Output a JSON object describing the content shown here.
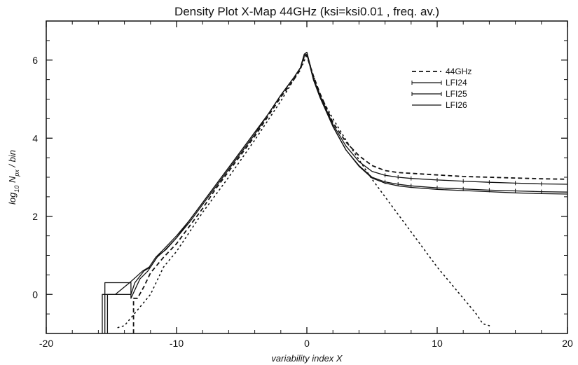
{
  "chart_data": {
    "type": "line",
    "title": "Density Plot X-Map 44GHz (ksi=ksi0.01 , freq. av.)",
    "xlabel": "variability index X",
    "ylabel_main": "log",
    "ylabel_sub": "10",
    "ylabel_mid": " N",
    "ylabel_sub2": "px",
    "ylabel_end": " / bin",
    "xlim": [
      -20,
      20
    ],
    "ylim": [
      -1,
      7
    ],
    "xticks": [
      -20,
      -10,
      0,
      10,
      20
    ],
    "xtick_labels": [
      "-20",
      "-10",
      "0",
      "10",
      "20"
    ],
    "yticks": [
      0,
      2,
      4,
      6
    ],
    "ytick_labels": [
      "0",
      "2",
      "4",
      "6"
    ],
    "grid": false,
    "legend_position": "top-right",
    "series": [
      {
        "name": "44GHz",
        "style": "dashed",
        "color": "#111111",
        "x": [
          -13.3,
          -13.3,
          -13.0,
          -12.5,
          -12.0,
          -11.5,
          -11.0,
          -10.0,
          -9.0,
          -8.0,
          -7.0,
          -6.0,
          -5.0,
          -4.0,
          -3.0,
          -2.0,
          -1.0,
          -0.5,
          -0.15,
          0.0,
          0.5,
          1.0,
          2.0,
          3.0,
          4.0,
          5.0,
          6.0,
          7.0,
          8.0,
          10.0,
          12.0,
          14.0,
          16.0,
          18.0,
          20.0
        ],
        "y": [
          -1.0,
          -0.1,
          -0.1,
          0.2,
          0.55,
          0.75,
          0.95,
          1.3,
          1.75,
          2.2,
          2.7,
          3.15,
          3.6,
          4.05,
          4.55,
          5.05,
          5.5,
          5.75,
          6.15,
          6.1,
          5.6,
          5.15,
          4.4,
          3.9,
          3.55,
          3.3,
          3.17,
          3.12,
          3.1,
          3.06,
          3.02,
          3.0,
          2.98,
          2.96,
          2.95
        ]
      },
      {
        "name": "LFI24",
        "style": "solid-ticked",
        "color": "#111111",
        "x": [
          -15.5,
          -15.5,
          -14.5,
          -13.5,
          -13.5,
          -12.8,
          -12.2,
          -11.5,
          -11.0,
          -10.0,
          -9.0,
          -8.0,
          -7.0,
          -6.0,
          -5.0,
          -4.0,
          -3.0,
          -2.0,
          -1.0,
          -0.5,
          -0.2,
          0.0,
          0.5,
          1.0,
          2.0,
          3.0,
          4.0,
          5.0,
          6.0,
          7.0,
          8.0,
          10.0,
          12.0,
          14.0,
          16.0,
          18.0,
          20.0
        ],
        "y": [
          -1.0,
          0.3,
          0.3,
          0.3,
          -0.1,
          0.4,
          0.6,
          0.95,
          1.1,
          1.45,
          1.85,
          2.3,
          2.75,
          3.2,
          3.65,
          4.1,
          4.6,
          5.1,
          5.55,
          5.8,
          6.15,
          6.2,
          5.55,
          5.1,
          4.35,
          3.8,
          3.4,
          3.15,
          3.05,
          3.0,
          2.97,
          2.93,
          2.9,
          2.87,
          2.85,
          2.83,
          2.82
        ]
      },
      {
        "name": "LFI25",
        "style": "solid-ticked",
        "color": "#111111",
        "x": [
          -15.3,
          -15.3,
          -14.3,
          -13.5,
          -13.2,
          -12.5,
          -12.0,
          -11.4,
          -10.8,
          -10.0,
          -9.0,
          -8.0,
          -7.0,
          -6.0,
          -5.0,
          -4.0,
          -3.0,
          -2.0,
          -1.0,
          -0.5,
          -0.2,
          0.0,
          0.5,
          1.0,
          2.0,
          3.0,
          4.0,
          5.0,
          6.0,
          7.0,
          8.0,
          10.0,
          12.0,
          14.0,
          16.0,
          18.0,
          20.0
        ],
        "y": [
          -1.0,
          0.0,
          0.0,
          0.0,
          0.3,
          0.6,
          0.7,
          1.0,
          1.15,
          1.45,
          1.9,
          2.35,
          2.8,
          3.25,
          3.7,
          4.15,
          4.6,
          5.1,
          5.55,
          5.8,
          6.1,
          6.15,
          5.5,
          5.05,
          4.3,
          3.7,
          3.3,
          3.0,
          2.88,
          2.82,
          2.78,
          2.73,
          2.7,
          2.67,
          2.65,
          2.63,
          2.62
        ]
      },
      {
        "name": "LFI26",
        "style": "solid",
        "color": "#111111",
        "x": [
          -15.7,
          -15.7,
          -14.7,
          -13.6,
          -13.1,
          -12.6,
          -12.1,
          -11.6,
          -11.0,
          -10.0,
          -9.0,
          -8.0,
          -7.0,
          -6.0,
          -5.0,
          -4.0,
          -3.0,
          -2.0,
          -1.0,
          -0.5,
          -0.2,
          0.0,
          0.5,
          1.0,
          2.0,
          3.0,
          4.0,
          5.0,
          6.0,
          7.0,
          8.0,
          10.0,
          12.0,
          14.0,
          16.0,
          18.0,
          20.0
        ],
        "y": [
          -1.0,
          0.0,
          0.0,
          0.3,
          0.45,
          0.6,
          0.7,
          0.95,
          1.15,
          1.5,
          1.9,
          2.35,
          2.8,
          3.25,
          3.7,
          4.15,
          4.6,
          5.1,
          5.55,
          5.8,
          6.15,
          6.2,
          5.5,
          5.05,
          4.3,
          3.7,
          3.28,
          2.98,
          2.85,
          2.78,
          2.74,
          2.69,
          2.66,
          2.63,
          2.6,
          2.58,
          2.57
        ]
      },
      {
        "name": "",
        "style": "dotted",
        "color": "#111111",
        "x": [
          -14.5,
          -14.0,
          -13.5,
          -13.0,
          -12.0,
          -11.0,
          -10.0,
          -8.0,
          -6.0,
          -4.0,
          -2.0,
          -1.0,
          -0.3,
          0.0,
          0.5,
          1.0,
          2.0,
          3.0,
          4.0,
          5.0,
          6.0,
          7.0,
          8.0,
          9.0,
          10.0,
          11.0,
          12.0,
          13.0,
          13.5,
          14.0
        ],
        "y": [
          -0.85,
          -0.8,
          -0.6,
          -0.4,
          0.0,
          0.7,
          1.1,
          2.1,
          3.0,
          3.95,
          4.95,
          5.5,
          5.9,
          6.15,
          5.6,
          5.1,
          4.5,
          3.95,
          3.45,
          2.95,
          2.5,
          2.05,
          1.6,
          1.15,
          0.7,
          0.3,
          -0.1,
          -0.5,
          -0.75,
          -0.8
        ]
      }
    ]
  }
}
